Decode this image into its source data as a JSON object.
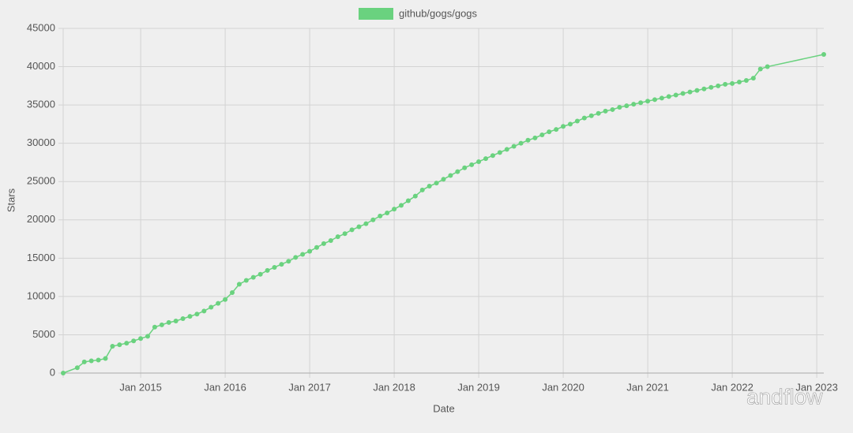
{
  "chart_data": {
    "type": "line",
    "x_label": "Date",
    "y_label": "Stars",
    "watermark": "andflow",
    "x": [
      "2014-02",
      "2014-04",
      "2014-05",
      "2014-06",
      "2014-07",
      "2014-08",
      "2014-09",
      "2014-10",
      "2014-11",
      "2014-12",
      "2015-01",
      "2015-02",
      "2015-03",
      "2015-04",
      "2015-05",
      "2015-06",
      "2015-07",
      "2015-08",
      "2015-09",
      "2015-10",
      "2015-11",
      "2015-12",
      "2016-01",
      "2016-02",
      "2016-03",
      "2016-04",
      "2016-05",
      "2016-06",
      "2016-07",
      "2016-08",
      "2016-09",
      "2016-10",
      "2016-11",
      "2016-12",
      "2017-01",
      "2017-02",
      "2017-03",
      "2017-04",
      "2017-05",
      "2017-06",
      "2017-07",
      "2017-08",
      "2017-09",
      "2017-10",
      "2017-11",
      "2017-12",
      "2018-01",
      "2018-02",
      "2018-03",
      "2018-04",
      "2018-05",
      "2018-06",
      "2018-07",
      "2018-08",
      "2018-09",
      "2018-10",
      "2018-11",
      "2018-12",
      "2019-01",
      "2019-02",
      "2019-03",
      "2019-04",
      "2019-05",
      "2019-06",
      "2019-07",
      "2019-08",
      "2019-09",
      "2019-10",
      "2019-11",
      "2019-12",
      "2020-01",
      "2020-02",
      "2020-03",
      "2020-04",
      "2020-05",
      "2020-06",
      "2020-07",
      "2020-08",
      "2020-09",
      "2020-10",
      "2020-11",
      "2020-12",
      "2021-01",
      "2021-02",
      "2021-03",
      "2021-04",
      "2021-05",
      "2021-06",
      "2021-07",
      "2021-08",
      "2021-09",
      "2021-10",
      "2021-11",
      "2021-12",
      "2022-01",
      "2022-02",
      "2022-03",
      "2022-04",
      "2022-05",
      "2022-06",
      "2023-02"
    ],
    "series": [
      {
        "name": "github/gogs/gogs",
        "color": "#6ad27f",
        "values": [
          0,
          700,
          1450,
          1600,
          1700,
          1900,
          3500,
          3700,
          3900,
          4200,
          4500,
          4800,
          6000,
          6300,
          6600,
          6800,
          7100,
          7400,
          7700,
          8100,
          8600,
          9100,
          9600,
          10500,
          11600,
          12100,
          12500,
          12900,
          13400,
          13800,
          14200,
          14600,
          15100,
          15500,
          15900,
          16400,
          16900,
          17300,
          17800,
          18200,
          18700,
          19100,
          19500,
          20000,
          20500,
          20900,
          21400,
          21900,
          22500,
          23100,
          23900,
          24400,
          24800,
          25300,
          25800,
          26300,
          26800,
          27200,
          27600,
          28000,
          28400,
          28800,
          29200,
          29600,
          30000,
          30400,
          30700,
          31100,
          31500,
          31800,
          32200,
          32500,
          32900,
          33300,
          33600,
          33900,
          34200,
          34400,
          34700,
          34900,
          35100,
          35300,
          35500,
          35700,
          35900,
          36100,
          36300,
          36500,
          36700,
          36900,
          37100,
          37300,
          37500,
          37700,
          37800,
          38000,
          38200,
          38500,
          39700,
          40000,
          41600
        ]
      }
    ],
    "xlim": [
      "2014-02",
      "2023-02"
    ],
    "xticks": [
      {
        "value": "2015-01",
        "label": "Jan 2015"
      },
      {
        "value": "2016-01",
        "label": "Jan 2016"
      },
      {
        "value": "2017-01",
        "label": "Jan 2017"
      },
      {
        "value": "2018-01",
        "label": "Jan 2018"
      },
      {
        "value": "2019-01",
        "label": "Jan 2019"
      },
      {
        "value": "2020-01",
        "label": "Jan 2020"
      },
      {
        "value": "2021-01",
        "label": "Jan 2021"
      },
      {
        "value": "2022-01",
        "label": "Jan 2022"
      },
      {
        "value": "2023-01",
        "label": "Jan 2023"
      }
    ],
    "ylim": [
      0,
      45000
    ],
    "yticks": [
      0,
      5000,
      10000,
      15000,
      20000,
      25000,
      30000,
      35000,
      40000,
      45000
    ],
    "grid": true
  }
}
